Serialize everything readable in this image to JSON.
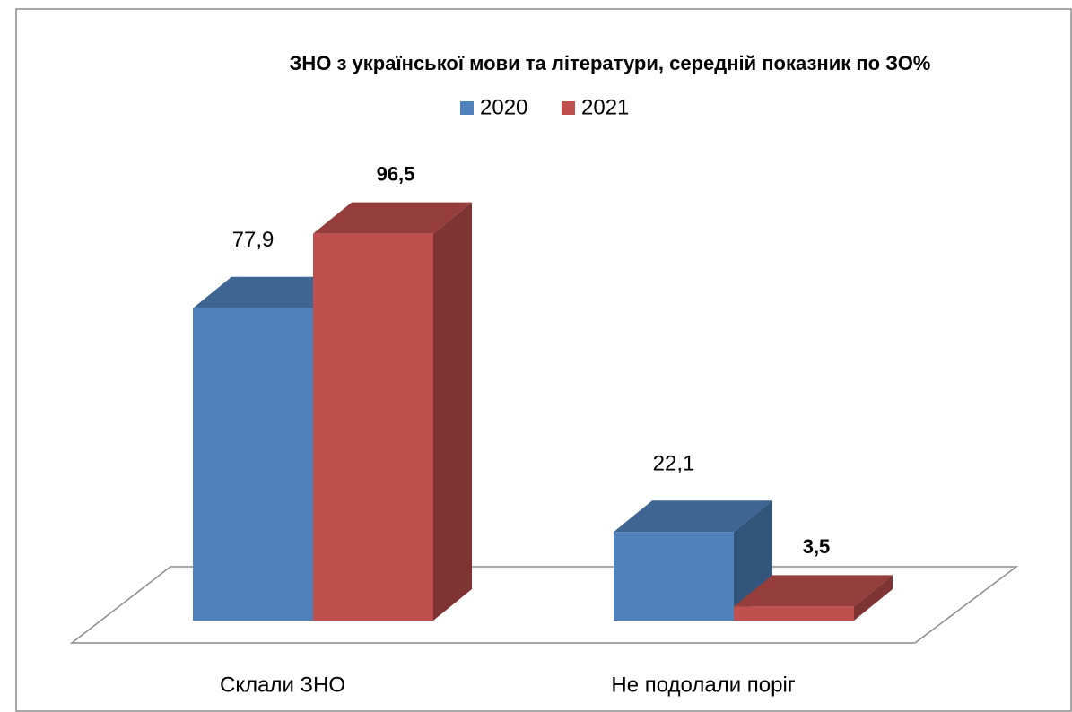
{
  "chart_data": {
    "type": "bar3d",
    "title": "ЗНО з української мови та літератури, середній показник по ЗО%",
    "categories": [
      "Склали ЗНО",
      "Не подолали поріг"
    ],
    "series": [
      {
        "name": "2020",
        "color": "#4f81bd",
        "values": [
          77.9,
          22.1
        ],
        "value_labels": [
          "77,9",
          "22,1"
        ],
        "bold_labels": false
      },
      {
        "name": "2021",
        "color": "#c0504d",
        "values": [
          96.5,
          3.5
        ],
        "value_labels": [
          "96,5",
          "3,5"
        ],
        "bold_labels": true
      }
    ],
    "ylim": [
      0,
      100
    ],
    "legend": "top"
  }
}
